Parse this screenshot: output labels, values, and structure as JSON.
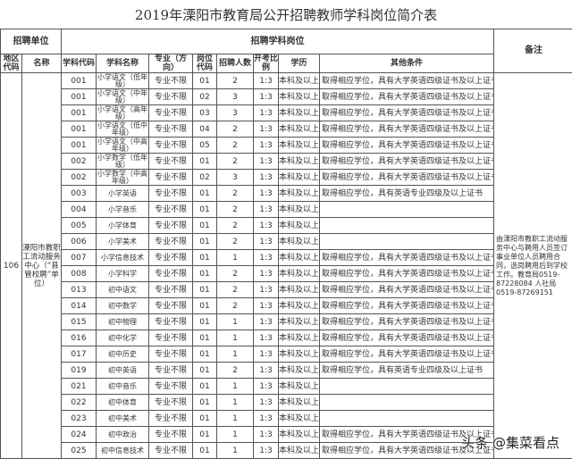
{
  "title": "2019年溧阳市教育局公开招聘教师学科岗位简介表",
  "header": {
    "unit": "招聘单位",
    "post": "招聘学科岗位",
    "remark": "备注",
    "cols": [
      "地区代码",
      "名称",
      "学科代码",
      "学科名称",
      "专业（方向）",
      "岗位代码",
      "招聘人数",
      "开考比例",
      "学历",
      "其他条件"
    ]
  },
  "unit": {
    "area_code": "106",
    "name": "溧阳市教职工流动服务中心（“县管校聘”单位）"
  },
  "remark": "由溧阳市教职工流动服务中心与聘用人员签订事业单位人员聘用合同，选岗聘用后到学校工作。教育局0519-87228084 人社局0519-87269151",
  "rows": [
    {
      "code": "001",
      "subject": "小学语文（低年级）",
      "major": "专业不限",
      "post": "01",
      "count": "2",
      "ratio": "1:3",
      "edu": "本科及以上",
      "cond": "取得相应学位，具有大学英语四级证书及以上证书"
    },
    {
      "code": "001",
      "subject": "小学语文（中年级）",
      "major": "专业不限",
      "post": "02",
      "count": "3",
      "ratio": "1:3",
      "edu": "本科及以上",
      "cond": "取得相应学位，具有大学英语四级证书及以上证书"
    },
    {
      "code": "001",
      "subject": "小学语文（高年级）",
      "major": "专业不限",
      "post": "03",
      "count": "3",
      "ratio": "1:3",
      "edu": "本科及以上",
      "cond": "取得相应学位，具有大学英语四级证书及以上证书"
    },
    {
      "code": "001",
      "subject": "小学语文（低中年级）",
      "major": "专业不限",
      "post": "04",
      "count": "2",
      "ratio": "1:3",
      "edu": "本科及以上",
      "cond": "取得相应学位，具有大学英语四级证书及以上证书"
    },
    {
      "code": "001",
      "subject": "小学语文（中高年级）",
      "major": "专业不限",
      "post": "05",
      "count": "2",
      "ratio": "1:3",
      "edu": "本科及以上",
      "cond": "取得相应学位，具有大学英语四级证书及以上证书"
    },
    {
      "code": "002",
      "subject": "小学数学（低年级）",
      "major": "专业不限",
      "post": "01",
      "count": "2",
      "ratio": "1:3",
      "edu": "本科及以上",
      "cond": "取得相应学位，具有大学英语四级证书及以上证书"
    },
    {
      "code": "002",
      "subject": "小学数学（中高年级）",
      "major": "专业不限",
      "post": "02",
      "count": "3",
      "ratio": "1:3",
      "edu": "本科及以上",
      "cond": "取得相应学位，具有大学英语四级证书及以上证书"
    },
    {
      "code": "003",
      "subject": "小学英语",
      "major": "专业不限",
      "post": "01",
      "count": "2",
      "ratio": "1:3",
      "edu": "本科及以上",
      "cond": "取得相应学位，具有英语专业四级及以上证书"
    },
    {
      "code": "004",
      "subject": "小学音乐",
      "major": "专业不限",
      "post": "01",
      "count": "2",
      "ratio": "1:3",
      "edu": "本科及以上",
      "cond": ""
    },
    {
      "code": "005",
      "subject": "小学体育",
      "major": "专业不限",
      "post": "01",
      "count": "2",
      "ratio": "1:3",
      "edu": "本科及以上",
      "cond": ""
    },
    {
      "code": "006",
      "subject": "小学美术",
      "major": "专业不限",
      "post": "01",
      "count": "2",
      "ratio": "1:3",
      "edu": "本科及以上",
      "cond": ""
    },
    {
      "code": "007",
      "subject": "小学信息技术",
      "major": "专业不限",
      "post": "01",
      "count": "1",
      "ratio": "1:3",
      "edu": "本科及以上",
      "cond": "取得相应学位，具有大学英语四级证书及以上证书"
    },
    {
      "code": "008",
      "subject": "小学科学",
      "major": "专业不限",
      "post": "01",
      "count": "2",
      "ratio": "1:3",
      "edu": "本科及以上",
      "cond": "取得相应学位，具有大学英语四级证书及以上证书"
    },
    {
      "code": "013",
      "subject": "初中语文",
      "major": "专业不限",
      "post": "01",
      "count": "2",
      "ratio": "1:3",
      "edu": "本科及以上",
      "cond": "取得相应学位，具有大学英语四级证书及以上证书"
    },
    {
      "code": "014",
      "subject": "初中数学",
      "major": "专业不限",
      "post": "01",
      "count": "2",
      "ratio": "1:3",
      "edu": "本科及以上",
      "cond": "取得相应学位，具有大学英语四级证书及以上证书"
    },
    {
      "code": "015",
      "subject": "初中物理",
      "major": "专业不限",
      "post": "01",
      "count": "1",
      "ratio": "1:3",
      "edu": "本科及以上",
      "cond": "取得相应学位，具有大学英语四级证书及以上证书"
    },
    {
      "code": "016",
      "subject": "初中化学",
      "major": "专业不限",
      "post": "01",
      "count": "1",
      "ratio": "1:3",
      "edu": "本科及以上",
      "cond": "取得相应学位，具有大学英语四级证书及以上证书"
    },
    {
      "code": "017",
      "subject": "初中历史",
      "major": "专业不限",
      "post": "01",
      "count": "1",
      "ratio": "1:3",
      "edu": "本科及以上",
      "cond": "取得相应学位，具有大学英语四级证书及以上证书"
    },
    {
      "code": "019",
      "subject": "初中英语",
      "major": "专业不限",
      "post": "01",
      "count": "2",
      "ratio": "1:3",
      "edu": "本科及以上",
      "cond": "取得相应学位，具有英语专业四级及以上证书"
    },
    {
      "code": "021",
      "subject": "初中音乐",
      "major": "专业不限",
      "post": "01",
      "count": "1",
      "ratio": "1:3",
      "edu": "本科及以上",
      "cond": ""
    },
    {
      "code": "022",
      "subject": "初中体育",
      "major": "专业不限",
      "post": "01",
      "count": "1",
      "ratio": "1:3",
      "edu": "本科及以上",
      "cond": ""
    },
    {
      "code": "023",
      "subject": "初中美术",
      "major": "专业不限",
      "post": "01",
      "count": "1",
      "ratio": "1:3",
      "edu": "本科及以上",
      "cond": ""
    },
    {
      "code": "024",
      "subject": "初中政治",
      "major": "专业不限",
      "post": "01",
      "count": "1",
      "ratio": "1:3",
      "edu": "本科及以上",
      "cond": "取得相应学位，具有大学英语四级证书及以上证书"
    },
    {
      "code": "025",
      "subject": "初中信息技术",
      "major": "专业不限",
      "post": "01",
      "count": "1",
      "ratio": "1:3",
      "edu": "本科及以上",
      "cond": "取得相应学位，具有大学英语四级证书及以上证书"
    }
  ],
  "watermark": "头条 @集菜看点"
}
